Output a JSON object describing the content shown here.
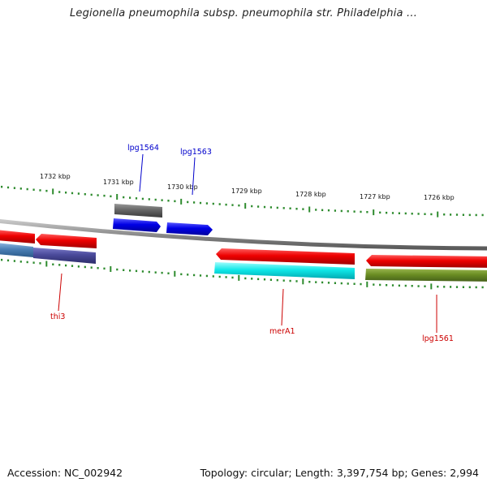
{
  "title": "Legionella pneumophila subsp. pneumophila str. Philadelphia ...",
  "footer": {
    "accession": "Accession: NC_002942",
    "summary": "Topology: circular; Length: 3,397,754 bp; Genes: 2,994"
  },
  "ruler": {
    "labels": [
      "1732 kbp",
      "1731 kbp",
      "1730 kbp",
      "1729 kbp",
      "1728 kbp",
      "1727 kbp",
      "1726 kbp"
    ]
  },
  "gene_labels": {
    "top": [
      "lpg1564",
      "lpg1563"
    ],
    "bottom": [
      "thi3",
      "merA1",
      "lpg1561"
    ]
  },
  "colors": {
    "backbone": "#8c8c8c",
    "tick": "#2e8b2e",
    "forward_red": "#e00000",
    "blue": "#0000dd",
    "gray": "#666666",
    "cyan": "#00e5e5",
    "olive": "#6b8e23",
    "steel": "#4a7fb5",
    "slate": "#4a4a9a",
    "label_blue": "#0000cc",
    "label_red": "#cc0000"
  }
}
